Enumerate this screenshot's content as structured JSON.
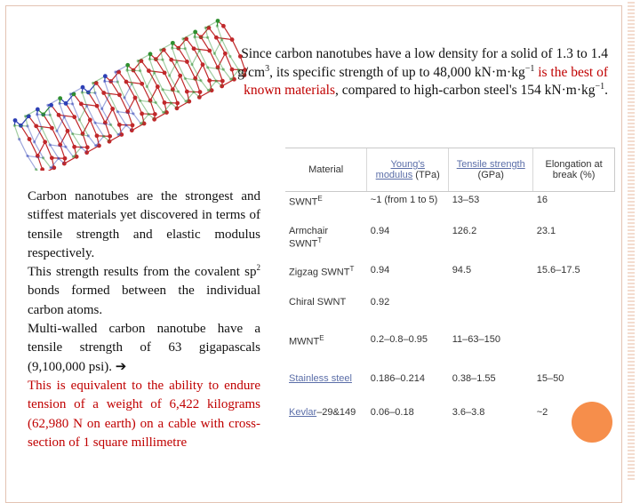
{
  "intro": {
    "text_a": "Since carbon nanotubes have a low density for a solid of 1.3 to 1.4 g/cm",
    "sup_a": "3",
    "text_b": ", its specific strength of up to 48,000 kN·m·kg",
    "sup_b": "−1",
    "highlight": " is the best of known materials",
    "text_c": ", compared to high-carbon steel's 154 kN·m·kg",
    "sup_c": "−1",
    "text_d": "."
  },
  "body": {
    "p1": "Carbon nanotubes are the strongest and stiffest materials yet discovered in terms of tensile strength and elastic modulus respectively.",
    "p2_a": "This strength results from the covalent sp",
    "p2_sup": "2",
    "p2_b": " bonds formed between the individual carbon atoms.",
    "p3": "Multi-walled carbon nanotube have a tensile strength of 63 gigapascals (9,100,000 psi).",
    "arrow": "➔",
    "p4": "This is equivalent to the ability to endure tension of a weight of 6,422 kilograms (62,980 N on earth) on a cable with cross-section of 1 square millimetre"
  },
  "table": {
    "headers": {
      "material": "Material",
      "young_link": "Young's modulus",
      "young_unit": "(TPa)",
      "tensile_link": "Tensile strength",
      "tensile_unit": "(GPa)",
      "elongation": "Elongation at break (%)"
    },
    "rows": [
      {
        "material": "SWNT",
        "sup": "E",
        "young": "~1 (from 1 to 5)",
        "tensile": "13–53",
        "elong": "16"
      },
      {
        "material": "Armchair SWNT",
        "sup": "T",
        "young": "0.94",
        "tensile": "126.2",
        "elong": "23.1"
      },
      {
        "material": "Zigzag SWNT",
        "sup": "T",
        "young": "0.94",
        "tensile": "94.5",
        "elong": "15.6–17.5"
      },
      {
        "material": "Chiral SWNT",
        "sup": "",
        "young": "0.92",
        "tensile": "",
        "elong": ""
      },
      {
        "material": "MWNT",
        "sup": "E",
        "young": "0.2–0.8–0.95",
        "tensile": "11–63–150",
        "elong": ""
      },
      {
        "material": "Stainless steel",
        "sup": "",
        "young": "0.186–0.214",
        "tensile": "0.38–1.55",
        "elong": "15–50",
        "link": true
      },
      {
        "material": "Kevlar",
        "sup": "",
        "suffix": "–29&149",
        "young": "0.06–0.18",
        "tensile": "3.6–3.8",
        "elong": "~2",
        "link": true
      }
    ]
  },
  "colors": {
    "highlight_red": "#c00000",
    "link_blue": "#5b6ea8",
    "tube_red": "#c0282a",
    "tube_green": "#2f8f2f",
    "tube_blue": "#2d3fb5",
    "accent_orange": "#f47a2b"
  }
}
